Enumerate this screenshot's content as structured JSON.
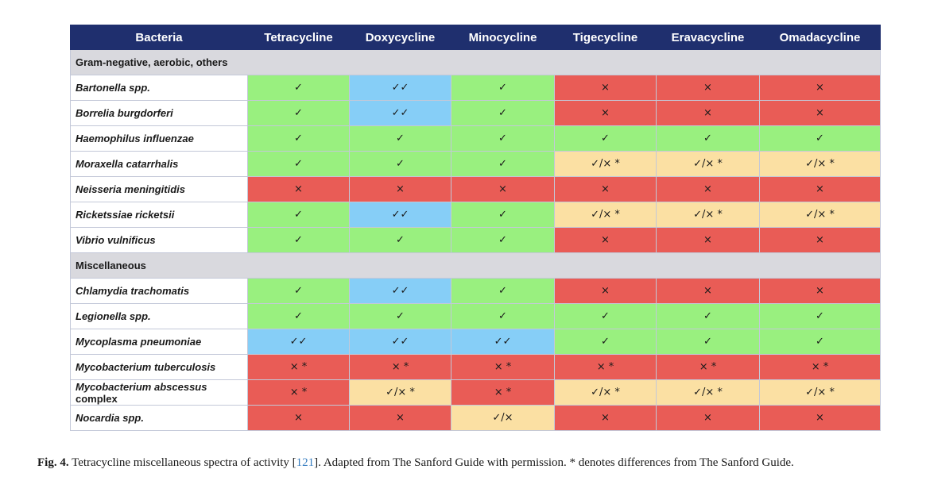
{
  "table": {
    "headers": [
      "Bacteria",
      "Tetracycline",
      "Doxycycline",
      "Minocycline",
      "Tigecycline",
      "Eravacycline",
      "Omadacycline"
    ],
    "sections": [
      {
        "title": "Gram-negative, aerobic, others",
        "rows": [
          {
            "name": "Bartonella spp.",
            "cells": [
              "✓",
              "✓✓",
              "✓",
              "×",
              "×",
              "×"
            ],
            "colors": [
              "g",
              "b",
              "g",
              "r",
              "r",
              "r"
            ]
          },
          {
            "name": "Borrelia burgdorferi",
            "cells": [
              "✓",
              "✓✓",
              "✓",
              "×",
              "×",
              "×"
            ],
            "colors": [
              "g",
              "b",
              "g",
              "r",
              "r",
              "r"
            ]
          },
          {
            "name": "Haemophilus influenzae",
            "cells": [
              "✓",
              "✓",
              "✓",
              "✓",
              "✓",
              "✓"
            ],
            "colors": [
              "g",
              "g",
              "g",
              "g",
              "g",
              "g"
            ]
          },
          {
            "name": "Moraxella catarrhalis",
            "cells": [
              "✓",
              "✓",
              "✓",
              "✓/× *",
              "✓/× *",
              "✓/× *"
            ],
            "colors": [
              "g",
              "g",
              "g",
              "y",
              "y",
              "y"
            ]
          },
          {
            "name": "Neisseria meningitidis",
            "cells": [
              "×",
              "×",
              "×",
              "×",
              "×",
              "×"
            ],
            "colors": [
              "r",
              "r",
              "r",
              "r",
              "r",
              "r"
            ]
          },
          {
            "name": "Ricketssiae ricketsii",
            "cells": [
              "✓",
              "✓✓",
              "✓",
              "✓/× *",
              "✓/× *",
              "✓/× *"
            ],
            "colors": [
              "g",
              "b",
              "g",
              "y",
              "y",
              "y"
            ]
          },
          {
            "name": "Vibrio vulnificus",
            "cells": [
              "✓",
              "✓",
              "✓",
              "×",
              "×",
              "×"
            ],
            "colors": [
              "g",
              "g",
              "g",
              "r",
              "r",
              "r"
            ]
          }
        ]
      },
      {
        "title": "Miscellaneous",
        "rows": [
          {
            "name": "Chlamydia trachomatis",
            "cells": [
              "✓",
              "✓✓",
              "✓",
              "×",
              "×",
              "×"
            ],
            "colors": [
              "g",
              "b",
              "g",
              "r",
              "r",
              "r"
            ]
          },
          {
            "name": "Legionella spp.",
            "cells": [
              "✓",
              "✓",
              "✓",
              "✓",
              "✓",
              "✓"
            ],
            "colors": [
              "g",
              "g",
              "g",
              "g",
              "g",
              "g"
            ]
          },
          {
            "name": "Mycoplasma pneumoniae",
            "cells": [
              "✓✓",
              "✓✓",
              "✓✓",
              "✓",
              "✓",
              "✓"
            ],
            "colors": [
              "b",
              "b",
              "b",
              "g",
              "g",
              "g"
            ]
          },
          {
            "name": "Mycobacterium tuberculosis",
            "cells": [
              "× *",
              "× *",
              "× *",
              "× *",
              "× *",
              "× *"
            ],
            "colors": [
              "r",
              "r",
              "r",
              "r",
              "r",
              "r"
            ]
          },
          {
            "name": "Mycobacterium abscessus",
            "name_suffix": " complex",
            "cells": [
              "× *",
              "✓/× *",
              "× *",
              "✓/× *",
              "✓/× *",
              "✓/× *"
            ],
            "colors": [
              "r",
              "y",
              "r",
              "y",
              "y",
              "y"
            ]
          },
          {
            "name": "Nocardia spp.",
            "cells": [
              "×",
              "×",
              "✓/×",
              "×",
              "×",
              "×"
            ],
            "colors": [
              "r",
              "r",
              "y",
              "r",
              "r",
              "r"
            ]
          }
        ]
      }
    ]
  },
  "caption": {
    "label": "Fig. 4.",
    "text_before": " Tetracycline miscellaneous spectra of activity [",
    "ref": "121",
    "text_after": "]. Adapted from The Sanford Guide with permission. * denotes differences from The Sanford Guide."
  },
  "colors": {
    "g": "#99f07f",
    "b": "#86cef7",
    "r": "#e95c56",
    "y": "#fbe0a3",
    "header": "#1f2f6e",
    "section": "#d9d9de"
  }
}
